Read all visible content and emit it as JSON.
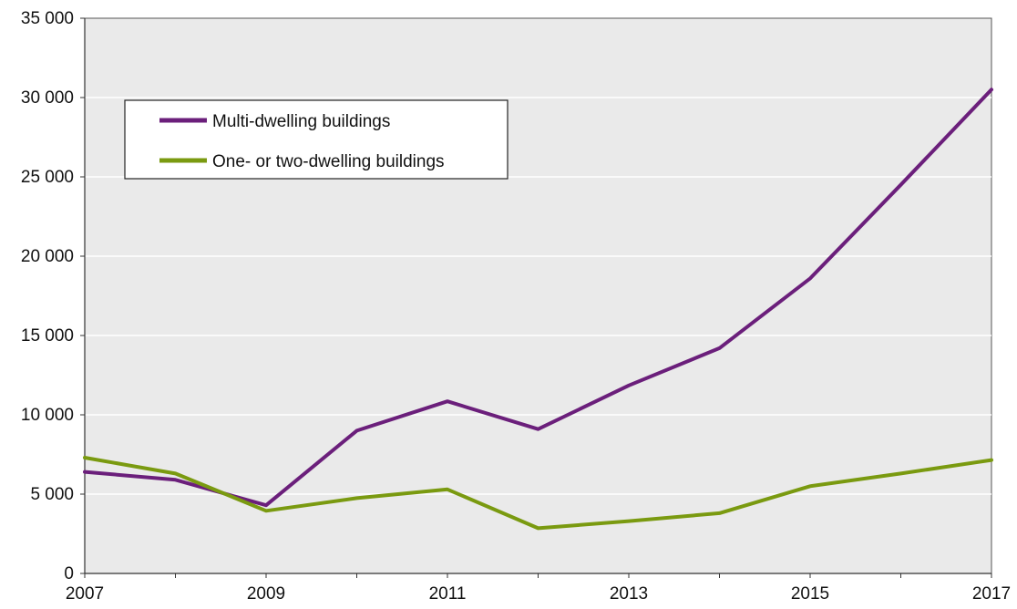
{
  "chart_data": {
    "type": "line",
    "title": "",
    "xlabel": "",
    "ylabel": "",
    "x": [
      2007,
      2008,
      2009,
      2010,
      2011,
      2012,
      2013,
      2014,
      2015,
      2016,
      2017
    ],
    "x_tick_labels": [
      "2007",
      "2009",
      "2011",
      "2013",
      "2015",
      "2017"
    ],
    "y_tick_labels": [
      "0",
      "5 000",
      "10 000",
      "15 000",
      "20 000",
      "25 000",
      "30 000",
      "35 000"
    ],
    "ylim": [
      0,
      35000
    ],
    "xlim": [
      2007,
      2017
    ],
    "grid": "horizontal",
    "legend_position": "top-left",
    "plot_background": "#eaeaea",
    "series": [
      {
        "name": "Multi-dwelling buildings",
        "color": "#6b1f7b",
        "values": [
          6400,
          5900,
          4300,
          9000,
          10850,
          9100,
          11850,
          14200,
          18600,
          24500,
          30500
        ]
      },
      {
        "name": "One- or two-dwelling buildings",
        "color": "#7a9a10",
        "values": [
          7300,
          6300,
          3950,
          4750,
          5300,
          2850,
          3300,
          3800,
          5500,
          6300,
          7150
        ]
      }
    ]
  }
}
